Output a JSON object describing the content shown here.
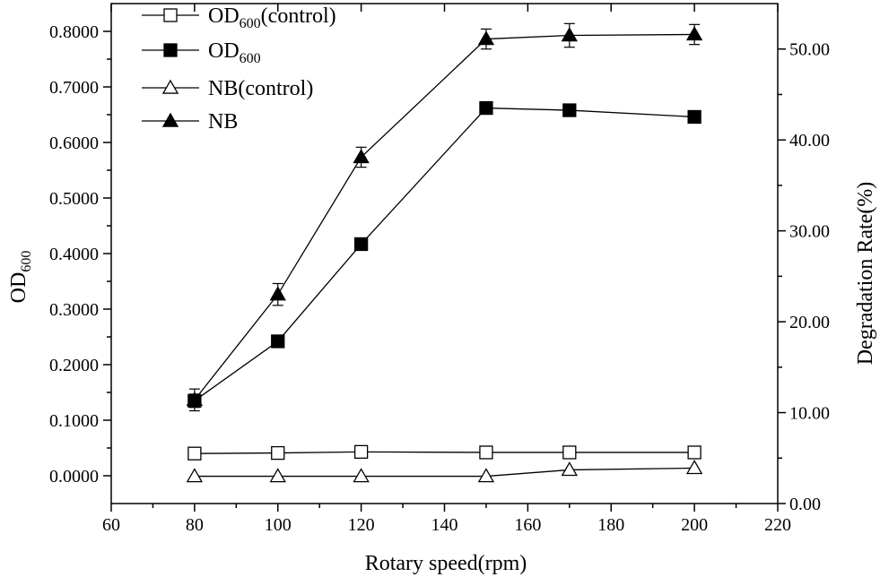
{
  "chart_data": {
    "type": "line",
    "x": [
      80,
      100,
      120,
      150,
      170,
      200
    ],
    "xlabel": "Rotary speed(rpm)",
    "xlim": [
      60,
      220
    ],
    "xticks": [
      "60",
      "80",
      "100",
      "120",
      "140",
      "160",
      "180",
      "200",
      "220"
    ],
    "ylabel_left": {
      "base": "OD",
      "sub": "600"
    },
    "ylim_left": [
      -0.05,
      0.85
    ],
    "yticks_left": [
      "0.0000",
      "0.1000",
      "0.2000",
      "0.3000",
      "0.4000",
      "0.5000",
      "0.6000",
      "0.7000",
      "0.8000"
    ],
    "ylabel_right": "Degradation Rate(%)",
    "ylim_right": [
      0,
      55
    ],
    "yticks_right": [
      "0.00",
      "10.00",
      "20.00",
      "30.00",
      "40.00",
      "50.00"
    ],
    "legend_position": "top-left",
    "series": [
      {
        "name": "OD600(control)",
        "legend": {
          "base": "OD",
          "sub": "600",
          "suffix": "(control)"
        },
        "axis": "left",
        "marker": "square-open",
        "values": [
          0.04,
          0.041,
          0.043,
          0.042,
          0.042,
          0.042
        ],
        "errors": [
          0,
          0,
          0,
          0,
          0,
          0
        ]
      },
      {
        "name": "OD600",
        "legend": {
          "base": "OD",
          "sub": "600",
          "suffix": ""
        },
        "axis": "left",
        "marker": "square-filled",
        "values": [
          0.135,
          0.242,
          0.417,
          0.662,
          0.658,
          0.646
        ],
        "errors": [
          0.012,
          0.008,
          0.009,
          0.008,
          0.01,
          0.009
        ]
      },
      {
        "name": "NB(control)",
        "legend": {
          "base": "NB(control)",
          "sub": "",
          "suffix": ""
        },
        "axis": "right",
        "marker": "triangle-open",
        "values": [
          3.0,
          3.0,
          3.0,
          3.0,
          3.7,
          3.9
        ],
        "errors": [
          0,
          0,
          0,
          0,
          0,
          0
        ]
      },
      {
        "name": "NB",
        "legend": {
          "base": "NB",
          "sub": "",
          "suffix": ""
        },
        "axis": "right",
        "marker": "triangle-filled",
        "values": [
          11.4,
          23.0,
          38.1,
          51.1,
          51.5,
          51.6
        ],
        "errors": [
          1.2,
          1.2,
          1.1,
          1.1,
          1.3,
          1.1
        ]
      }
    ]
  }
}
